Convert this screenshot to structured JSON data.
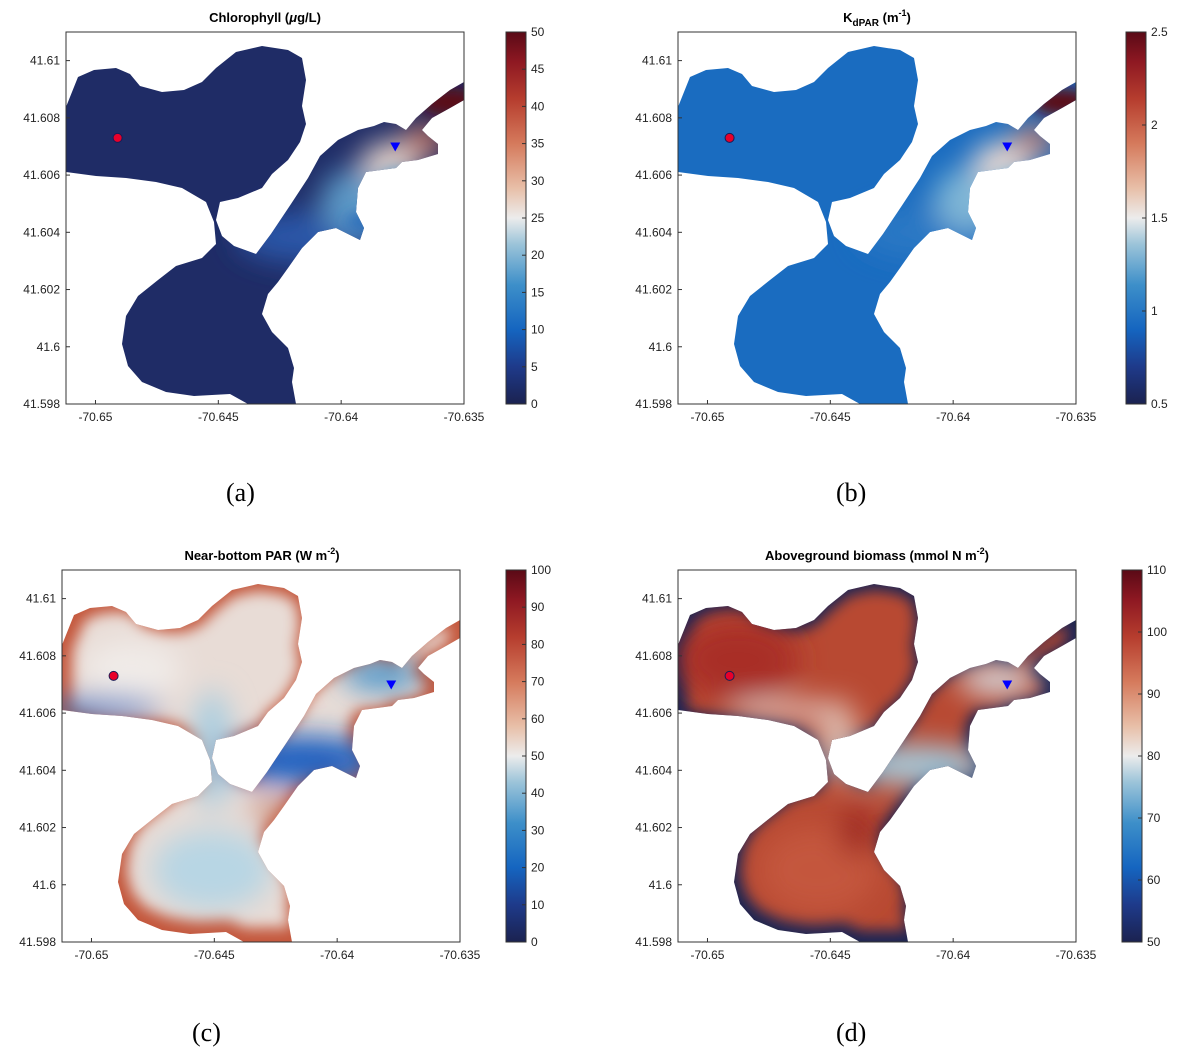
{
  "chart_data": [
    {
      "type": "heatmap",
      "title_main": "Chlorophyll (",
      "title_mu": "μ",
      "title_tail": "g/L)",
      "caption": "(a)",
      "xlim": [
        -70.6512,
        -70.635
      ],
      "ylim": [
        41.598,
        41.611
      ],
      "x_ticks": [
        -70.65,
        -70.645,
        -70.64,
        -70.635
      ],
      "y_ticks": [
        41.598,
        41.6,
        41.602,
        41.604,
        41.606,
        41.608,
        41.61
      ],
      "colorbar": {
        "min": 0,
        "max": 50,
        "ticks": [
          0,
          5,
          10,
          15,
          20,
          25,
          30,
          35,
          40,
          45,
          50
        ]
      },
      "markers": [
        {
          "type": "circle",
          "x": -70.6491,
          "y": 41.6073,
          "color": "#e8002a"
        },
        {
          "type": "triangle",
          "x": -70.6378,
          "y": 41.607,
          "color": "#0000ff"
        }
      ],
      "field_summary": {
        "western_basin": 2,
        "channel": 8,
        "upper_estuary": 30,
        "river_head": 50
      }
    },
    {
      "type": "heatmap",
      "title_main": "K",
      "title_sub": "dPAR",
      "title_unit": " (m",
      "title_sup": "-1",
      "title_close": ")",
      "caption": "(b)",
      "xlim": [
        -70.6512,
        -70.635
      ],
      "ylim": [
        41.598,
        41.611
      ],
      "x_ticks": [
        -70.65,
        -70.645,
        -70.64,
        -70.635
      ],
      "y_ticks": [
        41.598,
        41.6,
        41.602,
        41.604,
        41.606,
        41.608,
        41.61
      ],
      "colorbar": {
        "min": 0.5,
        "max": 2.5,
        "ticks": [
          0.5,
          1,
          1.5,
          2,
          2.5
        ]
      },
      "markers": [
        {
          "type": "circle",
          "x": -70.6491,
          "y": 41.6073,
          "color": "#e8002a"
        },
        {
          "type": "triangle",
          "x": -70.6378,
          "y": 41.607,
          "color": "#0000ff"
        }
      ],
      "field_summary": {
        "western_basin": 0.95,
        "channel": 1.1,
        "upper_estuary": 1.8,
        "river_head": 2.5
      }
    },
    {
      "type": "heatmap",
      "title_main": "Near-bottom PAR (W m",
      "title_sup": "-2",
      "title_close": ")",
      "caption": "(c)",
      "xlim": [
        -70.6512,
        -70.635
      ],
      "ylim": [
        41.598,
        41.611
      ],
      "x_ticks": [
        -70.65,
        -70.645,
        -70.64,
        -70.635
      ],
      "y_ticks": [
        41.598,
        41.6,
        41.602,
        41.604,
        41.606,
        41.608,
        41.61
      ],
      "colorbar": {
        "min": 0,
        "max": 100,
        "ticks": [
          0,
          10,
          20,
          30,
          40,
          50,
          60,
          70,
          80,
          90,
          100
        ]
      },
      "markers": [
        {
          "type": "circle",
          "x": -70.6491,
          "y": 41.6073,
          "color": "#e8002a"
        },
        {
          "type": "triangle",
          "x": -70.6378,
          "y": 41.607,
          "color": "#0000ff"
        }
      ],
      "field_summary": {
        "shoreline": 75,
        "western_basin": 48,
        "channel": 18,
        "upper_estuary": 28
      }
    },
    {
      "type": "heatmap",
      "title_main": "Aboveground biomass (mmol N m",
      "title_sup": "-2",
      "title_close": ")",
      "caption": "(d)",
      "xlim": [
        -70.6512,
        -70.635
      ],
      "ylim": [
        41.598,
        41.611
      ],
      "x_ticks": [
        -70.65,
        -70.645,
        -70.64,
        -70.635
      ],
      "y_ticks": [
        41.598,
        41.6,
        41.602,
        41.604,
        41.606,
        41.608,
        41.61
      ],
      "colorbar": {
        "min": 50,
        "max": 110,
        "ticks": [
          50,
          60,
          70,
          80,
          90,
          100,
          110
        ]
      },
      "markers": [
        {
          "type": "circle",
          "x": -70.6491,
          "y": 41.6073,
          "color": "#e8002a"
        },
        {
          "type": "triangle",
          "x": -70.6378,
          "y": 41.607,
          "color": "#0000ff"
        }
      ],
      "field_summary": {
        "western_basin": 100,
        "channel": 80,
        "channel_center": 70,
        "upper_estuary": 75,
        "edge": 50
      }
    }
  ]
}
